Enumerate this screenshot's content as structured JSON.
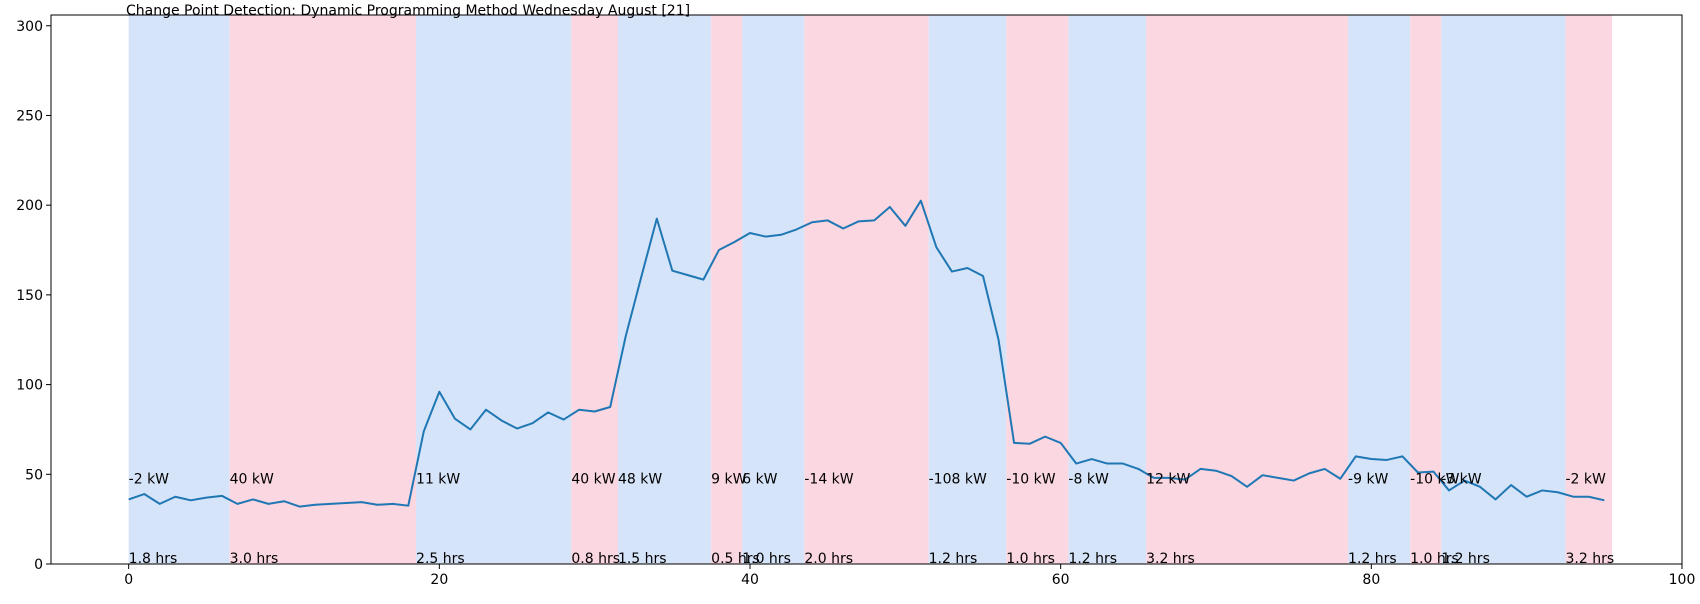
{
  "chart_data": {
    "type": "line",
    "title": "Change Point Detection: Dynamic Programming Method Wednesday August [21]",
    "xlabel": "",
    "ylabel": "",
    "xlim": [
      -5,
      100
    ],
    "ylim": [
      0,
      306
    ],
    "xticks": [
      0,
      20,
      40,
      60,
      80,
      100
    ],
    "yticks": [
      0,
      50,
      100,
      150,
      200,
      250,
      300
    ],
    "grid": false,
    "colors": {
      "line": "#1f77b4",
      "seg_a": "#d6e4f9",
      "seg_b": "#fbd7e2",
      "axis": "#000000"
    },
    "series": [
      {
        "values": [
          36,
          39,
          33.5,
          37.5,
          35.5,
          37,
          38,
          33.5,
          36,
          33.5,
          35,
          32,
          33,
          33.5,
          34,
          34.5,
          33,
          33.5,
          32.5,
          74,
          96,
          81,
          75,
          86,
          80,
          75.5,
          78.5,
          84.5,
          80.5,
          86,
          85,
          87.5,
          127,
          160,
          192.5,
          163.5,
          161,
          158.5,
          175,
          179.5,
          184.5,
          182.5,
          183.5,
          186.5,
          190.5,
          191.5,
          187,
          191,
          191.5,
          199,
          188.5,
          202.5,
          176.5,
          163,
          165,
          160.5,
          125,
          67.5,
          67,
          71,
          67.5,
          56,
          58.5,
          56,
          56,
          53,
          48,
          48,
          47,
          53,
          52,
          49,
          43,
          49.5,
          48,
          46.5,
          50.5,
          53,
          47.5,
          60,
          58.5,
          58,
          60,
          51,
          51.5,
          41,
          46.5,
          43,
          36,
          44,
          37.5,
          41,
          40,
          37.5,
          37.5,
          35.5
        ]
      }
    ],
    "segments": [
      {
        "start": 0,
        "end": 6.5,
        "kw": "-2 kW",
        "hrs": "1.8 hrs"
      },
      {
        "start": 6.5,
        "end": 18.5,
        "kw": "40 kW",
        "hrs": "3.0 hrs"
      },
      {
        "start": 18.5,
        "end": 28.5,
        "kw": "11 kW",
        "hrs": "2.5 hrs"
      },
      {
        "start": 28.5,
        "end": 31.5,
        "kw": "40 kW",
        "hrs": "0.8 hrs"
      },
      {
        "start": 31.5,
        "end": 37.5,
        "kw": "48 kW",
        "hrs": "1.5 hrs"
      },
      {
        "start": 37.5,
        "end": 39.5,
        "kw": "9 kW",
        "hrs": "0.5 hrs"
      },
      {
        "start": 39.5,
        "end": 43.5,
        "kw": "6 kW",
        "hrs": "1.0 hrs"
      },
      {
        "start": 43.5,
        "end": 51.5,
        "kw": "-14 kW",
        "hrs": "2.0 hrs"
      },
      {
        "start": 51.5,
        "end": 56.5,
        "kw": "-108 kW",
        "hrs": "1.2 hrs"
      },
      {
        "start": 56.5,
        "end": 60.5,
        "kw": "-10 kW",
        "hrs": "1.0 hrs"
      },
      {
        "start": 60.5,
        "end": 65.5,
        "kw": "-8 kW",
        "hrs": "1.2 hrs"
      },
      {
        "start": 65.5,
        "end": 78.5,
        "kw": "12 kW",
        "hrs": "3.2 hrs"
      },
      {
        "start": 78.5,
        "end": 82.5,
        "kw": "-9 kW",
        "hrs": "1.2 hrs"
      },
      {
        "start": 82.5,
        "end": 84.5,
        "kw": "-10 kW",
        "hrs": "1.0 hrs"
      },
      {
        "start": 84.5,
        "end": 92.5,
        "kw": "-3 kW",
        "hrs": "1.2 hrs"
      },
      {
        "start": 92.5,
        "end": 95.5,
        "kw": "-2 kW",
        "hrs": "3.2 hrs"
      }
    ]
  }
}
